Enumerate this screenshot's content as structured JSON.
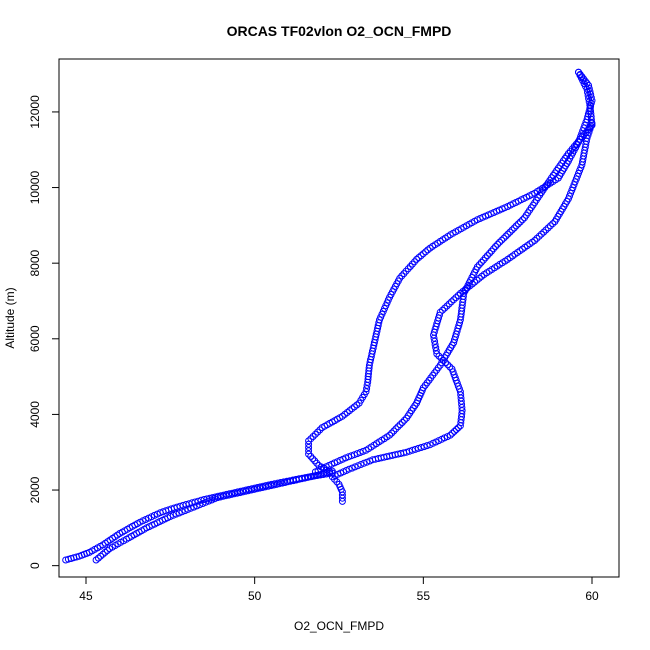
{
  "chart_data": {
    "type": "scatter",
    "title": "ORCAS TF02vlon O2_OCN_FMPD",
    "xlabel": "O2_OCN_FMPD",
    "ylabel": "Altitude (m)",
    "xlim": [
      44.2,
      60.8
    ],
    "ylim": [
      -300,
      13400
    ],
    "xticks": [
      45,
      50,
      55,
      60
    ],
    "yticks": [
      0,
      2000,
      4000,
      6000,
      8000,
      10000,
      12000
    ],
    "grid": false,
    "marker": "open-circle",
    "color": "#0000ff",
    "series": [
      {
        "segments": [
          [
            [
              44.4,
              150
            ],
            [
              44.8,
              250
            ],
            [
              45.1,
              350
            ],
            [
              45.5,
              550
            ],
            [
              46.0,
              850
            ],
            [
              46.6,
              1150
            ],
            [
              47.2,
              1400
            ],
            [
              47.7,
              1550
            ],
            [
              48.5,
              1750
            ],
            [
              49.5,
              1950
            ],
            [
              50.5,
              2150
            ],
            [
              51.5,
              2330
            ],
            [
              52.3,
              2450
            ]
          ],
          [
            [
              52.3,
              2450
            ],
            [
              51.9,
              2650
            ],
            [
              51.6,
              2950
            ],
            [
              51.6,
              3300
            ],
            [
              52.0,
              3650
            ],
            [
              52.6,
              3950
            ],
            [
              53.1,
              4300
            ],
            [
              53.3,
              4600
            ],
            [
              53.35,
              4850
            ],
            [
              53.4,
              5300
            ],
            [
              53.55,
              5900
            ],
            [
              53.7,
              6500
            ],
            [
              54.0,
              7100
            ],
            [
              54.3,
              7600
            ],
            [
              54.8,
              8100
            ],
            [
              55.2,
              8400
            ],
            [
              55.8,
              8750
            ],
            [
              56.6,
              9150
            ],
            [
              57.5,
              9500
            ],
            [
              58.3,
              9850
            ],
            [
              59.0,
              10250
            ],
            [
              59.3,
              10700
            ],
            [
              59.6,
              11200
            ],
            [
              59.85,
              11800
            ],
            [
              60.0,
              12300
            ],
            [
              59.9,
              12700
            ],
            [
              59.6,
              13050
            ]
          ],
          [
            [
              59.6,
              13050
            ],
            [
              59.85,
              12600
            ],
            [
              59.95,
              12100
            ],
            [
              60.0,
              11650
            ],
            [
              59.3,
              10900
            ],
            [
              58.6,
              10000
            ],
            [
              58.0,
              9200
            ],
            [
              57.2,
              8500
            ],
            [
              56.6,
              7900
            ],
            [
              56.2,
              7200
            ],
            [
              56.1,
              6500
            ],
            [
              55.9,
              5900
            ],
            [
              55.5,
              5300
            ],
            [
              55.0,
              4700
            ],
            [
              54.8,
              4300
            ],
            [
              54.5,
              3900
            ],
            [
              54.0,
              3450
            ],
            [
              53.3,
              3050
            ],
            [
              52.7,
              2850
            ],
            [
              52.2,
              2650
            ],
            [
              51.8,
              2480
            ]
          ],
          [
            [
              52.6,
              1700
            ],
            [
              52.6,
              1950
            ],
            [
              52.5,
              2150
            ],
            [
              52.3,
              2350
            ],
            [
              52.8,
              2550
            ],
            [
              53.5,
              2800
            ],
            [
              54.5,
              3000
            ],
            [
              55.2,
              3200
            ],
            [
              55.8,
              3450
            ],
            [
              56.1,
              3700
            ],
            [
              56.15,
              4100
            ],
            [
              56.1,
              4600
            ],
            [
              55.85,
              5200
            ],
            [
              55.4,
              5600
            ],
            [
              55.3,
              6100
            ],
            [
              55.5,
              6700
            ],
            [
              56.1,
              7200
            ],
            [
              56.8,
              7700
            ],
            [
              57.5,
              8100
            ],
            [
              58.3,
              8600
            ],
            [
              58.9,
              9100
            ],
            [
              59.3,
              9700
            ],
            [
              59.7,
              10600
            ],
            [
              59.85,
              11300
            ],
            [
              60.0,
              11700
            ]
          ],
          [
            [
              45.3,
              150
            ],
            [
              45.5,
              300
            ],
            [
              45.7,
              450
            ],
            [
              46.2,
              700
            ],
            [
              46.8,
              1000
            ],
            [
              47.5,
              1300
            ],
            [
              48.2,
              1550
            ],
            [
              48.9,
              1800
            ],
            [
              49.9,
              2000
            ],
            [
              50.9,
              2200
            ],
            [
              51.9,
              2400
            ],
            [
              52.3,
              2500
            ]
          ]
        ]
      }
    ]
  }
}
